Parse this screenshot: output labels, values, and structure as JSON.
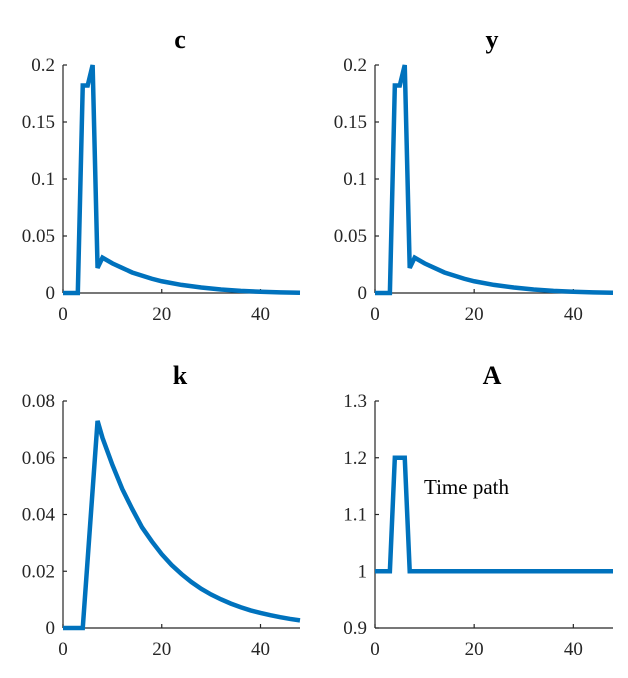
{
  "chart_data": [
    {
      "type": "line",
      "title": "c",
      "xlabel": "",
      "ylabel": "",
      "xlim": [
        0,
        48
      ],
      "ylim": [
        0,
        0.2
      ],
      "xticks": [
        0,
        20,
        40
      ],
      "yticks": [
        0,
        0.05,
        0.1,
        0.15,
        0.2
      ],
      "xtick_labels": [
        "0",
        "20",
        "40"
      ],
      "ytick_labels": [
        "0",
        "0.05",
        "0.1",
        "0.15",
        "0.2"
      ],
      "grid": false,
      "series": [
        {
          "color": "#0072BD",
          "x": [
            0,
            3,
            4,
            5,
            6,
            7,
            8,
            10,
            12,
            14,
            16,
            18,
            20,
            24,
            28,
            32,
            36,
            40,
            44,
            48
          ],
          "y": [
            0,
            0,
            0.182,
            0.182,
            0.2,
            0.022,
            0.031,
            0.026,
            0.022,
            0.018,
            0.0152,
            0.0125,
            0.0103,
            0.0071,
            0.0048,
            0.0031,
            0.0019,
            0.0011,
            0.0005,
            0.0002
          ]
        }
      ]
    },
    {
      "type": "line",
      "title": "y",
      "xlabel": "",
      "ylabel": "",
      "xlim": [
        0,
        48
      ],
      "ylim": [
        0,
        0.2
      ],
      "xticks": [
        0,
        20,
        40
      ],
      "yticks": [
        0,
        0.05,
        0.1,
        0.15,
        0.2
      ],
      "xtick_labels": [
        "0",
        "20",
        "40"
      ],
      "ytick_labels": [
        "0",
        "0.05",
        "0.1",
        "0.15",
        "0.2"
      ],
      "grid": false,
      "series": [
        {
          "color": "#0072BD",
          "x": [
            0,
            3,
            4,
            5,
            6,
            7,
            8,
            10,
            12,
            14,
            16,
            18,
            20,
            24,
            28,
            32,
            36,
            40,
            44,
            48
          ],
          "y": [
            0,
            0,
            0.182,
            0.182,
            0.2,
            0.022,
            0.031,
            0.026,
            0.022,
            0.018,
            0.0152,
            0.0125,
            0.0103,
            0.0071,
            0.0048,
            0.0031,
            0.0019,
            0.0011,
            0.0005,
            0.0002
          ]
        }
      ]
    },
    {
      "type": "line",
      "title": "k",
      "xlabel": "",
      "ylabel": "",
      "xlim": [
        0,
        48
      ],
      "ylim": [
        0,
        0.08
      ],
      "xticks": [
        0,
        20,
        40
      ],
      "yticks": [
        0,
        0.02,
        0.04,
        0.06,
        0.08
      ],
      "xtick_labels": [
        "0",
        "20",
        "40"
      ],
      "ytick_labels": [
        "0",
        "0.02",
        "0.04",
        "0.06",
        "0.08"
      ],
      "grid": false,
      "series": [
        {
          "color": "#0072BD",
          "x": [
            0,
            4,
            7,
            8,
            10,
            12,
            14,
            16,
            18,
            20,
            22,
            24,
            26,
            28,
            30,
            32,
            34,
            36,
            38,
            40,
            42,
            44,
            46,
            48
          ],
          "y": [
            0,
            0,
            0.073,
            0.067,
            0.0575,
            0.049,
            0.042,
            0.0355,
            0.0305,
            0.026,
            0.0222,
            0.019,
            0.0162,
            0.0138,
            0.0118,
            0.0101,
            0.0086,
            0.0073,
            0.0062,
            0.0053,
            0.0045,
            0.0038,
            0.0032,
            0.0027
          ]
        }
      ]
    },
    {
      "type": "line",
      "title": "A",
      "xlabel": "",
      "ylabel": "",
      "xlim": [
        0,
        48
      ],
      "ylim": [
        0.9,
        1.3
      ],
      "xticks": [
        0,
        20,
        40
      ],
      "yticks": [
        0.9,
        1,
        1.1,
        1.2,
        1.3
      ],
      "xtick_labels": [
        "0",
        "20",
        "40"
      ],
      "ytick_labels": [
        "0.9",
        "1",
        "1.1",
        "1.2",
        "1.3"
      ],
      "grid": false,
      "annotation": "Time path",
      "series": [
        {
          "color": "#0072BD",
          "x": [
            0,
            3,
            4,
            6,
            7,
            48
          ],
          "y": [
            1,
            1,
            1.2,
            1.2,
            1,
            1
          ]
        }
      ]
    }
  ]
}
